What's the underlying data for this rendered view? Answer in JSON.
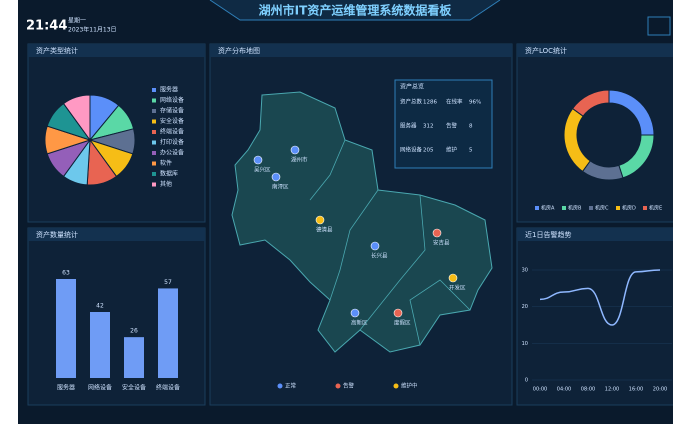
{
  "header": {
    "time": "21:44",
    "weekday": "星期一",
    "date": "2023年11月13日",
    "title": "湖州市IT资产运维管理系统数据看板"
  },
  "type_panel": {
    "title": "资产类型统计",
    "categories": [
      "服务器",
      "网络设备",
      "存储设备",
      "安全设备",
      "终端设备",
      "打印设备",
      "办公设备",
      "软件",
      "数据库",
      "其他"
    ],
    "values": [
      11,
      10,
      9,
      10,
      11,
      9,
      10,
      10,
      10,
      10
    ],
    "colors": [
      "#5b8ff9",
      "#5ad8a6",
      "#5d7092",
      "#f6bd16",
      "#e86452",
      "#6dc8ec",
      "#945fb9",
      "#ff9845",
      "#1e9493",
      "#ff99c3"
    ]
  },
  "count_panel": {
    "title": "资产数量统计",
    "categories": [
      "服务器",
      "网络设备",
      "安全设备",
      "终端设备"
    ],
    "values": [
      63,
      42,
      26,
      57
    ],
    "color": "#6f9cf5"
  },
  "map_panel": {
    "title": "资产分布地图",
    "markers": [
      {
        "label": "吴兴区",
        "type": 0
      },
      {
        "label": "湖州市",
        "type": 0
      },
      {
        "label": "南浔区",
        "type": 0
      },
      {
        "label": "德清县",
        "type": 2
      },
      {
        "label": "长兴县",
        "type": 0
      },
      {
        "label": "安吉县",
        "type": 1
      },
      {
        "label": "开发区",
        "type": 2
      },
      {
        "label": "度假区",
        "type": 1
      },
      {
        "label": "高新区",
        "type": 0
      }
    ],
    "legend": [
      {
        "name": "正常",
        "color": "#5b8ff9"
      },
      {
        "name": "告警",
        "color": "#e86452"
      },
      {
        "name": "维护中",
        "color": "#f6bd16"
      }
    ],
    "info": {
      "title": "资产总览",
      "rows": [
        [
          "资产总数",
          "1286",
          "在线率",
          "96%"
        ],
        [
          "服务器",
          "312",
          "告警",
          "8"
        ],
        [
          "网络设备",
          "205",
          "维护",
          "5"
        ]
      ]
    }
  },
  "loc_panel": {
    "title": "资产LOC统计",
    "categories": [
      "机房A",
      "机房B",
      "机房C",
      "机房D",
      "机房E"
    ],
    "values": [
      25,
      20,
      15,
      25,
      15
    ],
    "colors": [
      "#5b8ff9",
      "#5ad8a6",
      "#5d7092",
      "#f6bd16",
      "#e86452"
    ]
  },
  "trend_panel": {
    "title": "近1日告警趋势",
    "x": [
      "00:00",
      "04:00",
      "08:00",
      "12:00",
      "16:00",
      "20:00"
    ],
    "values": [
      22,
      24,
      25,
      15,
      29.5,
      30
    ],
    "ylim": [
      0,
      30
    ],
    "yticks": [
      0,
      10,
      20,
      30
    ],
    "color": "#8fb8ff"
  }
}
